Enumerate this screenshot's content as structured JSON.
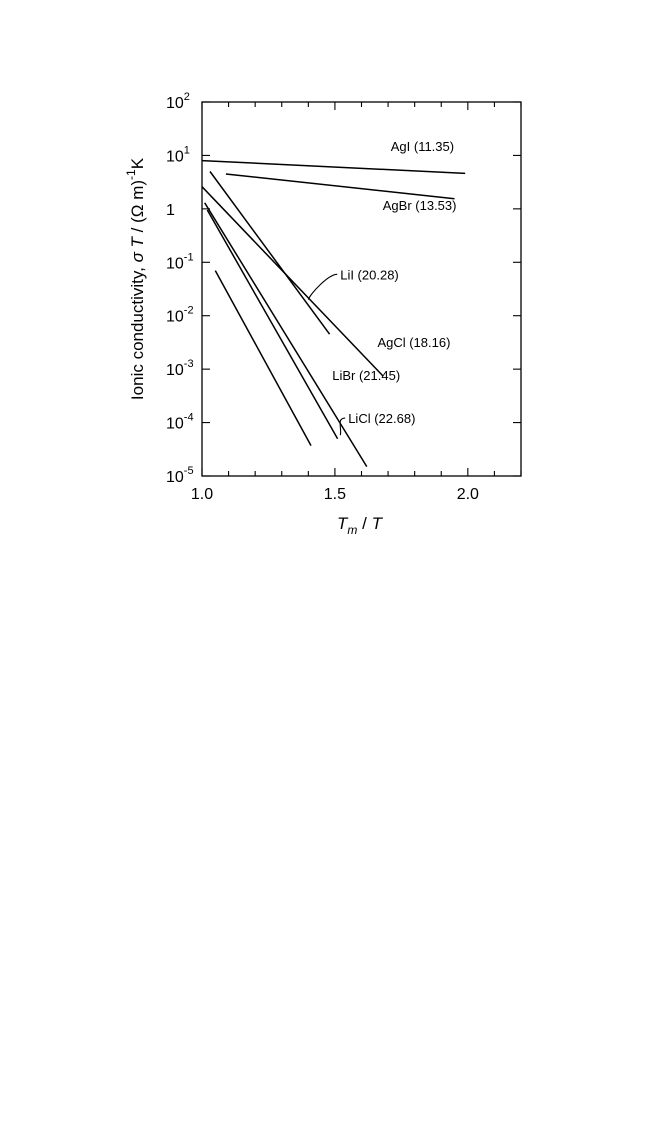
{
  "chart_data": {
    "type": "line",
    "xlabel_parts": [
      {
        "text": "T",
        "style": "italic"
      },
      {
        "text": "m",
        "style": "italic-sub"
      },
      {
        "text": " / ",
        "style": "normal"
      },
      {
        "text": "T",
        "style": "italic"
      }
    ],
    "ylabel_parts": [
      {
        "text": "Ionic conductivity,  ",
        "style": "normal"
      },
      {
        "text": "σ T",
        "style": "italic"
      },
      {
        "text": " / (Ω m)",
        "style": "normal"
      },
      {
        "text": "-1",
        "style": "sup"
      },
      {
        "text": "K",
        "style": "normal"
      }
    ],
    "x_scale": "linear",
    "y_scale": "log",
    "xlim": [
      1.0,
      2.2
    ],
    "ylim": [
      1e-05,
      100
    ],
    "x_ticks": [
      {
        "value": 1.0,
        "label": "1.0"
      },
      {
        "value": 1.5,
        "label": "1.5"
      },
      {
        "value": 2.0,
        "label": "2.0"
      }
    ],
    "y_ticks": [
      {
        "value": 100,
        "base": "10",
        "exp": "2"
      },
      {
        "value": 10,
        "base": "10",
        "exp": "1"
      },
      {
        "value": 1,
        "base": "1",
        "exp": ""
      },
      {
        "value": 0.1,
        "base": "10",
        "exp": "-1"
      },
      {
        "value": 0.01,
        "base": "10",
        "exp": "-2"
      },
      {
        "value": 0.001,
        "base": "10",
        "exp": "-3"
      },
      {
        "value": 0.0001,
        "base": "10",
        "exp": "-4"
      },
      {
        "value": 1e-05,
        "base": "10",
        "exp": "-5"
      }
    ],
    "grid": false,
    "legend": "none",
    "series": [
      {
        "name": "AgI (11.35)",
        "x": [
          1.0,
          1.99
        ],
        "y": [
          8.0,
          4.6
        ]
      },
      {
        "name": "AgBr (13.53)",
        "x": [
          1.09,
          1.95
        ],
        "y": [
          4.5,
          1.55
        ]
      },
      {
        "name": "LiI (20.28)",
        "x": [
          1.03,
          1.48
        ],
        "y": [
          5.0,
          0.0045
        ]
      },
      {
        "name": "AgCl (18.16)",
        "x": [
          1.0,
          1.68
        ],
        "y": [
          2.6,
          0.00075
        ]
      },
      {
        "name": "LiBr (21.45)",
        "x": [
          1.02,
          1.51
        ],
        "y": [
          0.95,
          5e-05
        ]
      },
      {
        "name": "LiCl (22.68)",
        "x": [
          1.01,
          1.62
        ],
        "y": [
          1.3,
          1.5e-05
        ]
      },
      {
        "name": "",
        "x": [
          1.05,
          1.41
        ],
        "y": [
          0.07,
          3.7e-05
        ]
      }
    ],
    "annotations": [
      {
        "series": 0,
        "text": "AgI (11.35)",
        "x": 1.71,
        "y": 12.0
      },
      {
        "series": 1,
        "text": "AgBr (13.53)",
        "x": 1.68,
        "y": 0.96
      },
      {
        "series": 2,
        "text": "LiI (20.28)",
        "x": 1.52,
        "y": 0.048,
        "leader_to": [
          1.4,
          0.02
        ]
      },
      {
        "series": 3,
        "text": "AgCl (18.16)",
        "x": 1.66,
        "y": 0.0026
      },
      {
        "series": 4,
        "text": "LiBr (21.45)",
        "x": 1.49,
        "y": 0.00062
      },
      {
        "series": 5,
        "text": "LiCl (22.68)",
        "x": 1.55,
        "y": 9.8e-05,
        "leader_to": [
          1.52,
          5.8e-05
        ]
      }
    ]
  }
}
